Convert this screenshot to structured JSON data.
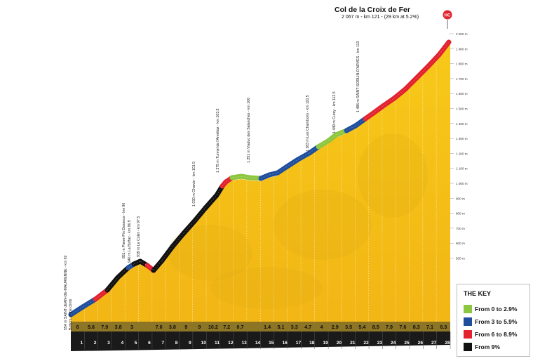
{
  "summit": {
    "name": "Col de la Croix de Fer",
    "details": "2 067 m - km 121 - (29 km at 5.2%)",
    "badge": "HC"
  },
  "altitude_scale": [
    "2 000 m",
    "1 900 m",
    "1 800 m",
    "1 700 m",
    "1 600 m",
    "1 500 m",
    "1 400 m",
    "1 300 m",
    "1 200 m",
    "1 100 m",
    "1 000 m",
    "900 m",
    "800 m",
    "700 m",
    "600 m",
    "500 m"
  ],
  "km_markers": [
    "1",
    "2",
    "3",
    "4",
    "5",
    "6",
    "7",
    "8",
    "9",
    "10",
    "11",
    "12",
    "13",
    "14",
    "15",
    "16",
    "17",
    "18",
    "19",
    "20",
    "21",
    "22",
    "23",
    "24",
    "25",
    "26",
    "27",
    "28"
  ],
  "segment_gradients": [
    "6",
    "5.6",
    "7.9",
    "3.8",
    "3",
    "",
    "7.6",
    "3.8",
    "9",
    "9",
    "10.2",
    "7.2",
    "0.7",
    "",
    "1.4",
    "5.1",
    "3.3",
    "4.7",
    "4",
    "2.9",
    "3.5",
    "5.4",
    "8.5",
    "7.9",
    "7.6",
    "8.3",
    "7.1",
    "6.3"
  ],
  "landmarks": [
    {
      "text": "554 m SAINT-JEAN-DE-MAURIENNE - km 92",
      "sub": "Bottom of the climb"
    },
    {
      "text": "851 m Pierre-Pin Dessous - km 96"
    },
    {
      "text": "946 m La Buffaz - km 96.5"
    },
    {
      "text": "939 m Le Colet - km 97.5"
    },
    {
      "text": "1 030 m Charvin - km 101.5"
    },
    {
      "text": "1 275 m Tunnel de l'Arvettaz - km 103.5"
    },
    {
      "text": "1 251 m Viaduc des Salanches - km 106"
    },
    {
      "text": "1 383 m Les Chambons - km 110.5"
    },
    {
      "text": "1 449 m Curey - km 112.5"
    },
    {
      "text": "1 486 m SAINT-SORLIN-D'ARVES - km 113"
    }
  ],
  "key": {
    "title": "THE KEY",
    "items": [
      {
        "label": "From 0 to 2.9%",
        "color": "#8dc63f"
      },
      {
        "label": "From 3 to 5.9%",
        "color": "#1f4e9c"
      },
      {
        "label": "From 6 to 8.9%",
        "color": "#e2232f"
      },
      {
        "label": "From 9%",
        "color": "#111111"
      }
    ]
  },
  "colors": {
    "terrain": "#f5c21a",
    "terrain_shadow": "#d9a40f",
    "base_band": "#1a1a1a",
    "base_band_top": "#7a6a28"
  }
}
